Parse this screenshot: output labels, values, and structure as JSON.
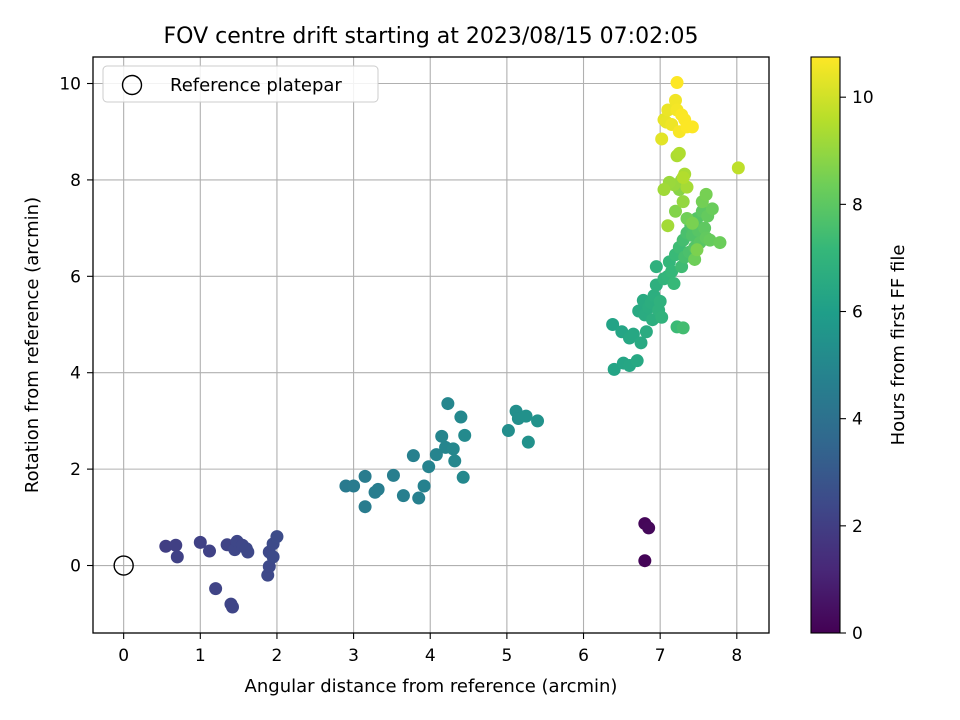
{
  "chart_data": {
    "type": "scatter",
    "title": "FOV centre drift starting at 2023/08/15 07:02:05",
    "xlabel": "Angular distance from reference (arcmin)",
    "ylabel": "Rotation from reference (arcmin)",
    "xlim": [
      -0.4,
      8.42
    ],
    "ylim": [
      -1.4,
      10.55
    ],
    "x_ticks": [
      0,
      1,
      2,
      3,
      4,
      5,
      6,
      7,
      8
    ],
    "y_ticks": [
      0,
      2,
      4,
      6,
      8,
      10
    ],
    "grid": true,
    "legend": {
      "position": "top-left",
      "entries": [
        "Reference platepar"
      ]
    },
    "reference_point": {
      "x": 0,
      "y": 0
    },
    "colorbar": {
      "label": "Hours from first FF file",
      "range": [
        0,
        10.75
      ],
      "ticks": [
        0,
        2,
        4,
        6,
        8,
        10
      ],
      "colormap": "viridis"
    },
    "colormap_stops": [
      "#440154",
      "#482878",
      "#3e4989",
      "#31688e",
      "#26828e",
      "#1f9e89",
      "#35b779",
      "#6ece58",
      "#b5de2b",
      "#fde725"
    ],
    "points": [
      [
        6.8,
        0.1,
        0.1
      ],
      [
        6.8,
        0.87,
        0.15
      ],
      [
        6.85,
        0.78,
        0.2
      ],
      [
        0.55,
        0.4,
        2.0
      ],
      [
        0.68,
        0.42,
        2.05
      ],
      [
        0.7,
        0.18,
        2.1
      ],
      [
        1.0,
        0.48,
        2.1
      ],
      [
        1.12,
        0.3,
        2.15
      ],
      [
        1.2,
        -0.48,
        2.2
      ],
      [
        1.35,
        0.43,
        2.2
      ],
      [
        1.4,
        -0.8,
        2.25
      ],
      [
        1.42,
        -0.86,
        2.25
      ],
      [
        1.45,
        0.33,
        2.3
      ],
      [
        1.48,
        0.5,
        2.3
      ],
      [
        1.55,
        0.42,
        2.3
      ],
      [
        1.6,
        0.35,
        2.35
      ],
      [
        1.62,
        0.28,
        2.35
      ],
      [
        1.88,
        -0.2,
        2.4
      ],
      [
        1.9,
        -0.02,
        2.4
      ],
      [
        1.9,
        0.28,
        2.4
      ],
      [
        1.95,
        0.18,
        2.45
      ],
      [
        1.95,
        0.45,
        2.45
      ],
      [
        2.0,
        0.6,
        2.5
      ],
      [
        2.9,
        1.65,
        4.4
      ],
      [
        3.0,
        1.65,
        4.45
      ],
      [
        3.15,
        1.85,
        4.5
      ],
      [
        3.15,
        1.22,
        4.5
      ],
      [
        3.28,
        1.52,
        4.55
      ],
      [
        3.32,
        1.58,
        4.55
      ],
      [
        3.52,
        1.87,
        4.6
      ],
      [
        3.65,
        1.45,
        4.65
      ],
      [
        3.78,
        2.28,
        4.7
      ],
      [
        3.85,
        1.4,
        4.7
      ],
      [
        3.92,
        1.65,
        4.75
      ],
      [
        3.98,
        2.05,
        4.8
      ],
      [
        4.08,
        2.3,
        4.85
      ],
      [
        4.15,
        2.68,
        4.9
      ],
      [
        4.2,
        2.45,
        4.9
      ],
      [
        4.23,
        3.36,
        4.95
      ],
      [
        4.3,
        2.42,
        5.0
      ],
      [
        4.32,
        2.17,
        5.0
      ],
      [
        4.4,
        3.08,
        5.05
      ],
      [
        4.43,
        1.83,
        5.05
      ],
      [
        4.45,
        2.7,
        5.1
      ],
      [
        5.02,
        2.8,
        5.3
      ],
      [
        5.12,
        3.2,
        5.35
      ],
      [
        5.15,
        3.05,
        5.35
      ],
      [
        5.25,
        3.1,
        5.4
      ],
      [
        5.28,
        2.56,
        5.4
      ],
      [
        5.4,
        3.0,
        5.45
      ],
      [
        6.38,
        5.0,
        6.2
      ],
      [
        6.4,
        4.07,
        6.25
      ],
      [
        6.5,
        4.85,
        6.3
      ],
      [
        6.52,
        4.2,
        6.3
      ],
      [
        6.6,
        4.15,
        6.35
      ],
      [
        6.6,
        4.72,
        6.4
      ],
      [
        6.65,
        4.8,
        6.4
      ],
      [
        6.7,
        4.25,
        6.45
      ],
      [
        6.72,
        5.28,
        6.5
      ],
      [
        6.75,
        4.62,
        6.5
      ],
      [
        6.78,
        5.5,
        6.55
      ],
      [
        6.8,
        5.2,
        6.6
      ],
      [
        6.82,
        4.85,
        6.6
      ],
      [
        6.85,
        5.35,
        6.65
      ],
      [
        6.88,
        5.45,
        6.7
      ],
      [
        6.9,
        5.1,
        6.75
      ],
      [
        6.92,
        5.6,
        6.75
      ],
      [
        6.95,
        5.82,
        6.8
      ],
      [
        6.95,
        6.2,
        6.85
      ],
      [
        6.98,
        5.3,
        6.9
      ],
      [
        7.0,
        5.48,
        6.9
      ],
      [
        7.02,
        5.15,
        6.95
      ],
      [
        7.05,
        5.95,
        7.0
      ],
      [
        7.1,
        6.0,
        7.05
      ],
      [
        7.12,
        6.3,
        7.1
      ],
      [
        7.15,
        6.1,
        7.15
      ],
      [
        7.18,
        5.85,
        7.2
      ],
      [
        7.2,
        6.45,
        7.25
      ],
      [
        7.22,
        4.95,
        7.3
      ],
      [
        7.25,
        6.6,
        7.35
      ],
      [
        7.28,
        6.2,
        7.4
      ],
      [
        7.3,
        4.93,
        7.45
      ],
      [
        7.3,
        6.75,
        7.5
      ],
      [
        7.32,
        6.4,
        7.55
      ],
      [
        7.35,
        6.9,
        7.6
      ],
      [
        7.38,
        6.5,
        7.65
      ],
      [
        7.4,
        7.05,
        7.7
      ],
      [
        7.42,
        6.85,
        7.75
      ],
      [
        7.45,
        6.6,
        7.8
      ],
      [
        7.48,
        7.2,
        7.85
      ],
      [
        7.5,
        6.95,
        7.9
      ],
      [
        7.52,
        6.7,
        7.95
      ],
      [
        7.55,
        7.35,
        8.0
      ],
      [
        7.58,
        7.0,
        8.05
      ],
      [
        7.6,
        6.8,
        8.1
      ],
      [
        7.62,
        7.25,
        8.15
      ],
      [
        7.65,
        6.75,
        8.2
      ],
      [
        7.68,
        7.4,
        8.25
      ],
      [
        7.78,
        6.7,
        8.3
      ],
      [
        7.45,
        6.35,
        8.35
      ],
      [
        7.35,
        7.2,
        8.4
      ],
      [
        7.55,
        7.55,
        8.45
      ],
      [
        7.6,
        7.7,
        8.5
      ],
      [
        7.42,
        7.1,
        8.55
      ],
      [
        7.48,
        6.55,
        8.6
      ],
      [
        7.2,
        7.35,
        8.7
      ],
      [
        7.25,
        7.8,
        8.8
      ],
      [
        7.28,
        8.0,
        8.9
      ],
      [
        7.3,
        7.55,
        9.0
      ],
      [
        7.18,
        7.9,
        9.05
      ],
      [
        7.12,
        7.95,
        9.1
      ],
      [
        7.05,
        7.8,
        9.2
      ],
      [
        7.1,
        7.05,
        9.25
      ],
      [
        7.35,
        7.85,
        9.3
      ],
      [
        7.32,
        8.12,
        9.35
      ],
      [
        7.22,
        8.5,
        9.4
      ],
      [
        7.25,
        8.55,
        9.45
      ],
      [
        7.3,
        8.05,
        9.5
      ],
      [
        8.02,
        8.25,
        9.7
      ],
      [
        7.02,
        8.85,
        10.3
      ],
      [
        7.05,
        9.25,
        10.35
      ],
      [
        7.08,
        9.2,
        10.4
      ],
      [
        7.1,
        9.45,
        10.45
      ],
      [
        7.15,
        9.15,
        10.5
      ],
      [
        7.2,
        9.65,
        10.55
      ],
      [
        7.22,
        9.45,
        10.6
      ],
      [
        7.25,
        9.0,
        10.65
      ],
      [
        7.28,
        9.35,
        10.7
      ],
      [
        7.32,
        9.25,
        10.72
      ],
      [
        7.35,
        9.1,
        10.73
      ],
      [
        7.42,
        9.1,
        10.74
      ],
      [
        7.22,
        10.02,
        10.75
      ]
    ]
  }
}
